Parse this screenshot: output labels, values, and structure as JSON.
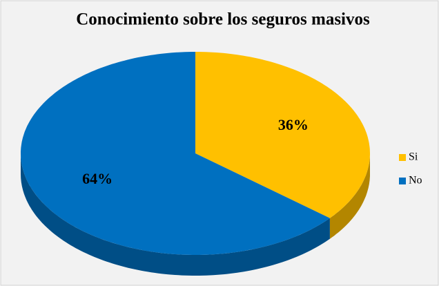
{
  "chart_data": {
    "type": "pie",
    "title": "Conocimiento sobre los seguros masivos",
    "categories": [
      "Si",
      "No"
    ],
    "values": [
      36,
      64
    ],
    "value_labels": [
      "36%",
      "64%"
    ],
    "colors": [
      "#FFC000",
      "#0070C0"
    ],
    "legend": "right"
  }
}
